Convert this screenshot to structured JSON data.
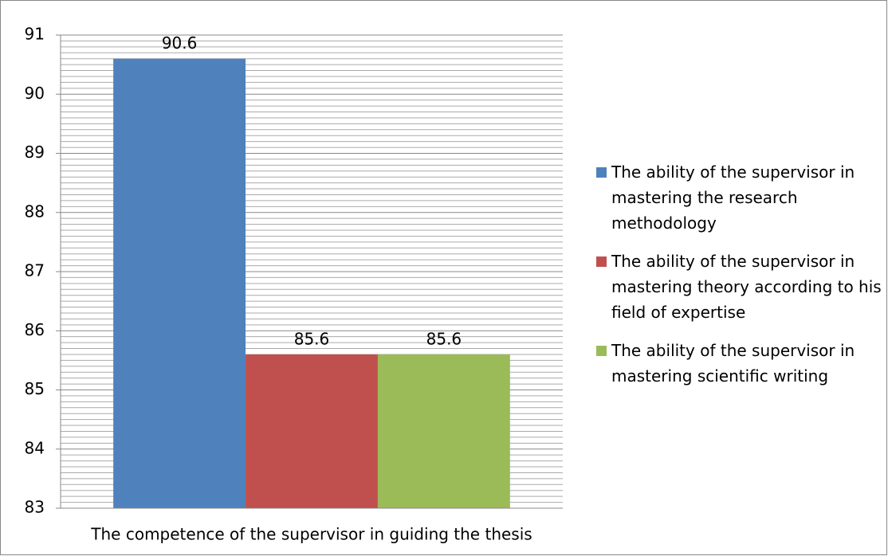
{
  "chart_data": {
    "type": "bar",
    "categories": [
      "The competence of the supervisor in guiding the thesis"
    ],
    "series": [
      {
        "name": "The ability of the supervisor in mastering the research methodology",
        "color": "#4f81bd",
        "values": [
          90.6
        ]
      },
      {
        "name": "The ability of the supervisor in mastering theory according to his field of expertise",
        "color": "#c0504d",
        "values": [
          85.6
        ]
      },
      {
        "name": "The ability of the supervisor in mastering scientific writing",
        "color": "#9bbb59",
        "values": [
          85.6
        ]
      }
    ],
    "ylim": [
      83,
      91
    ],
    "yticks": [
      83,
      84,
      85,
      86,
      87,
      88,
      89,
      90,
      91
    ],
    "minor_yticks": [
      83.1,
      83.2,
      83.3,
      83.4,
      83.5,
      83.6,
      83.7,
      83.8,
      83.9,
      84.1,
      84.2,
      84.3,
      84.4,
      84.5,
      84.6,
      84.7,
      84.8,
      84.9,
      85.1,
      85.2,
      85.3,
      85.4,
      85.5,
      85.6,
      85.7,
      85.8,
      85.9,
      86.1,
      86.2,
      86.3,
      86.4,
      86.5,
      86.6,
      86.7,
      86.8,
      86.9,
      87.1,
      87.2,
      87.3,
      87.4,
      87.5,
      87.6,
      87.7,
      87.8,
      87.9,
      88.1,
      88.2,
      88.3,
      88.4,
      88.5,
      88.6,
      88.7,
      88.8,
      88.9,
      89.1,
      89.2,
      89.3,
      89.4,
      89.5,
      89.6,
      89.7,
      89.8,
      89.9,
      90.1,
      90.2,
      90.3,
      90.4,
      90.5,
      90.6,
      90.7,
      90.8,
      90.9
    ],
    "grid": true,
    "legend": "right"
  }
}
